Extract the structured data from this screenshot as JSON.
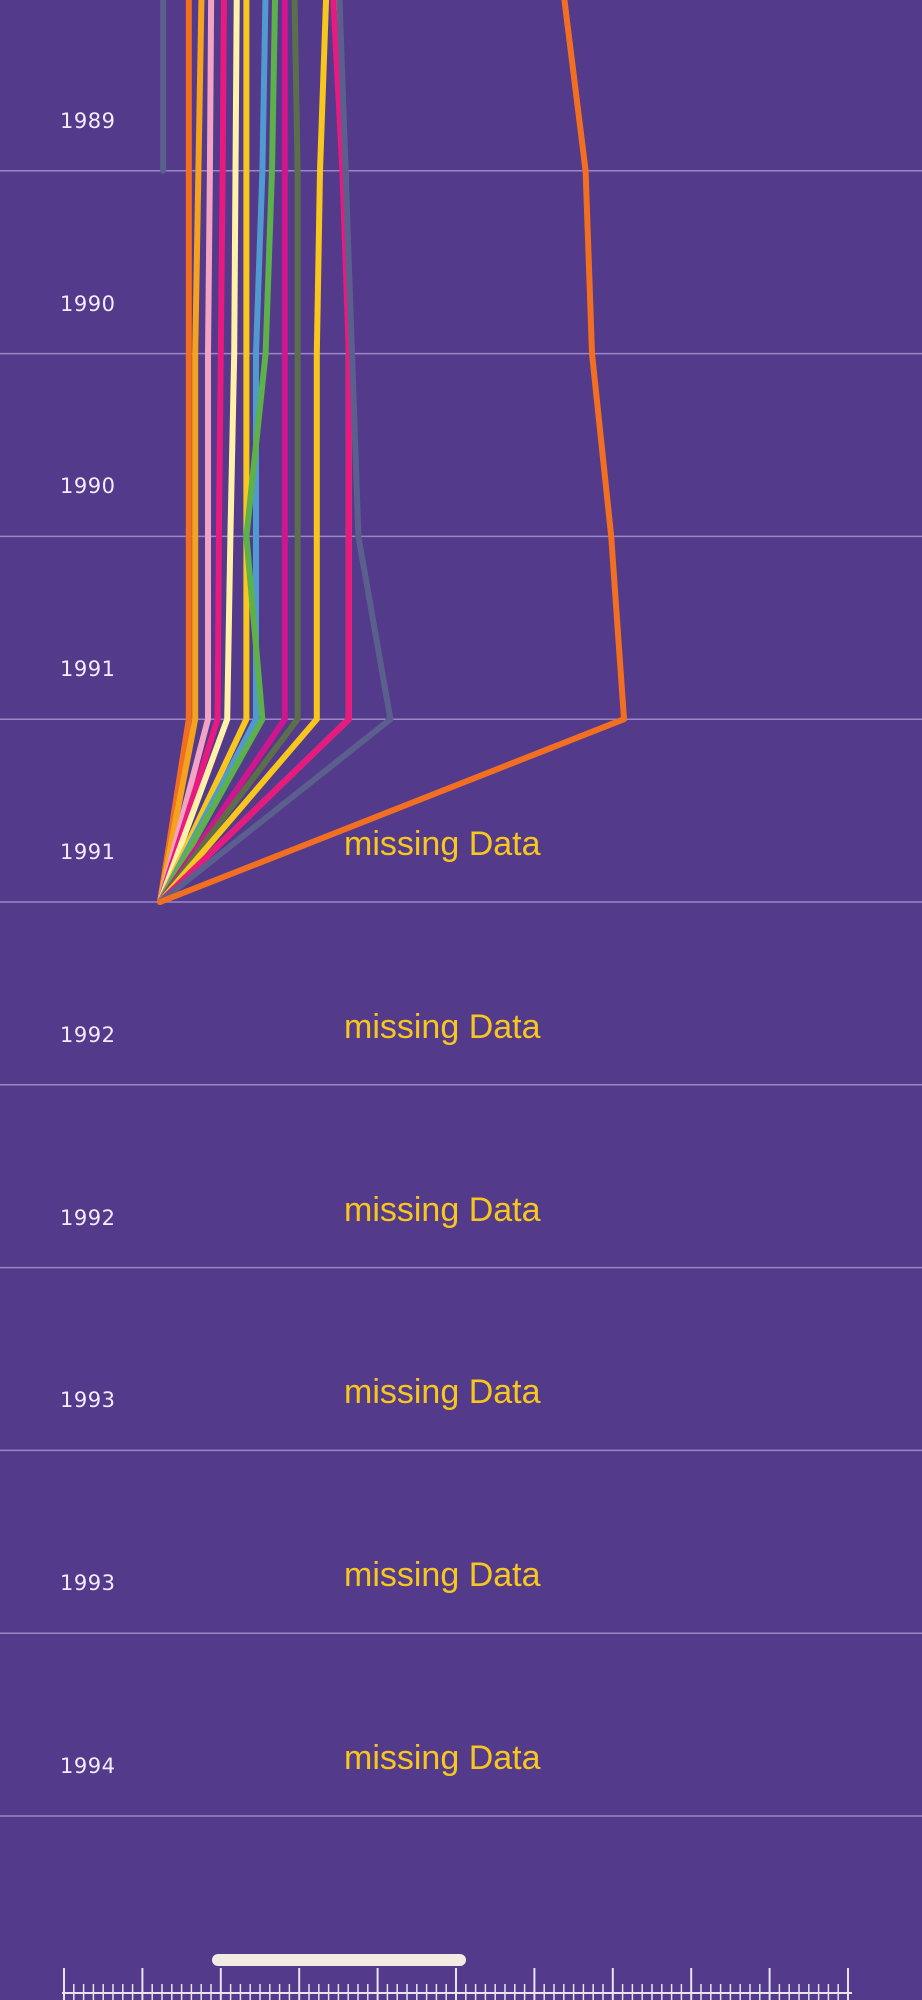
{
  "chart_data": {
    "type": "line",
    "orientation": "vertical-time",
    "rows": [
      {
        "year": "1989",
        "missing": false
      },
      {
        "year": "1990",
        "missing": false
      },
      {
        "year": "1990",
        "missing": false
      },
      {
        "year": "1991",
        "missing": false
      },
      {
        "year": "1991",
        "missing": true
      },
      {
        "year": "1992",
        "missing": true
      },
      {
        "year": "1992",
        "missing": true
      },
      {
        "year": "1993",
        "missing": true
      },
      {
        "year": "1993",
        "missing": true
      },
      {
        "year": "1994",
        "missing": true
      }
    ],
    "missing_label": "missing Data",
    "x_range": [
      0,
      100
    ],
    "series": [
      {
        "color": "#5a5f8e",
        "values": [
          0.5,
          0.5
        ]
      },
      {
        "color": "#f26f21",
        "values": [
          4.5,
          4.5,
          4.5,
          4.5,
          4.5,
          0
        ]
      },
      {
        "color": "#f5a31e",
        "values": [
          6.5,
          6,
          5.5,
          5.5,
          5.5,
          0
        ]
      },
      {
        "color": "#f2a3c4",
        "values": [
          8,
          7.8,
          7.5,
          7.5,
          7.5,
          0
        ]
      },
      {
        "color": "#e8197f",
        "values": [
          10,
          9.8,
          9.5,
          9.2,
          9,
          0
        ]
      },
      {
        "color": "#fff2a8",
        "values": [
          12,
          11.8,
          11.6,
          11,
          10.5,
          0
        ]
      },
      {
        "color": "#f7c71e",
        "values": [
          13.5,
          13.5,
          13.5,
          13.5,
          13.5,
          0
        ]
      },
      {
        "color": "#4f9bd1",
        "values": [
          16.5,
          16,
          15,
          15,
          15,
          0
        ]
      },
      {
        "color": "#5db14a",
        "values": [
          18,
          17.5,
          16.5,
          13.5,
          16,
          0
        ]
      },
      {
        "color": "#d1168d",
        "values": [
          19.5,
          19.5,
          19.5,
          19.5,
          19.5,
          0
        ]
      },
      {
        "color": "#5d6e4b",
        "values": [
          21,
          21.5,
          21.5,
          21.5,
          21.5,
          0
        ]
      },
      {
        "color": "#f7c71e",
        "values": [
          26,
          25,
          24.5,
          24.5,
          24.5,
          0
        ]
      },
      {
        "color": "#f5a31e",
        "values": [
          27.5,
          29,
          29.5,
          29.5,
          29.5,
          0
        ]
      },
      {
        "color": "#e8197f",
        "values": [
          27,
          28.5,
          29.5,
          29.5,
          29.5,
          0
        ]
      },
      {
        "color": "#5a5f8e",
        "values": [
          28,
          29,
          30,
          31,
          36,
          0
        ]
      },
      {
        "color": "#f26f21",
        "values": [
          63,
          66.5,
          67.5,
          70.5,
          72.5,
          0
        ]
      }
    ]
  },
  "colors": {
    "background": "#533a8b",
    "gridline": "#9a88c4",
    "label": "#f3ecff",
    "missing": "#f7c71e",
    "scrollbar": "#f1ebe3",
    "ruler": "#e8e2f2"
  },
  "scrollbar": {
    "position": 0.26
  }
}
